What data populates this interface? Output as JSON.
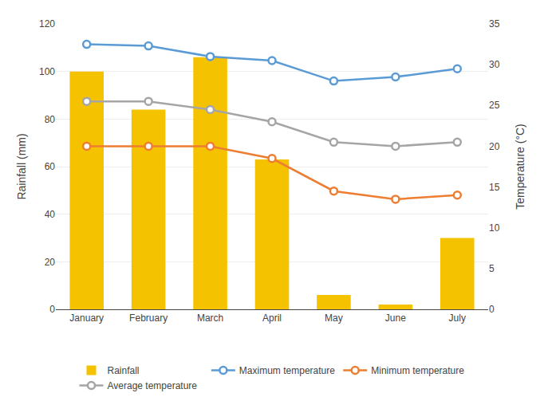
{
  "chart_data": {
    "type": "bar",
    "categories": [
      "January",
      "February",
      "March",
      "April",
      "May",
      "June",
      "July"
    ],
    "series": [
      {
        "name": "Rainfall",
        "type": "bar",
        "color": "#F5C200",
        "values": [
          100,
          84,
          106,
          63,
          6,
          2,
          30
        ]
      },
      {
        "name": "Maximum temperature",
        "type": "line",
        "marker": "circle",
        "axis": "y2",
        "color": "#5B9BD5",
        "values": [
          32.5,
          32.3,
          31.0,
          30.5,
          28.0,
          28.5,
          29.5
        ]
      },
      {
        "name": "Minimum temperature",
        "type": "line",
        "marker": "circle",
        "axis": "y2",
        "color": "#ED7D31",
        "values": [
          20.0,
          20.0,
          20.0,
          18.5,
          14.5,
          13.5,
          14.0
        ]
      },
      {
        "name": "Average temperature",
        "type": "line",
        "marker": "circle",
        "axis": "y2",
        "color": "#A5A5A5",
        "values": [
          25.5,
          25.5,
          24.5,
          23.0,
          20.5,
          20.0,
          20.5
        ]
      }
    ],
    "ylabel": "Rainfall (mm)",
    "y2label": "Temperature (°C)",
    "ylim": [
      0,
      120
    ],
    "yticks": [
      0,
      20,
      40,
      60,
      80,
      100,
      120
    ],
    "y2lim": [
      0,
      35
    ],
    "y2ticks": [
      0,
      5,
      10,
      15,
      20,
      25,
      30,
      35
    ],
    "grid": true,
    "legend": "bottom"
  }
}
